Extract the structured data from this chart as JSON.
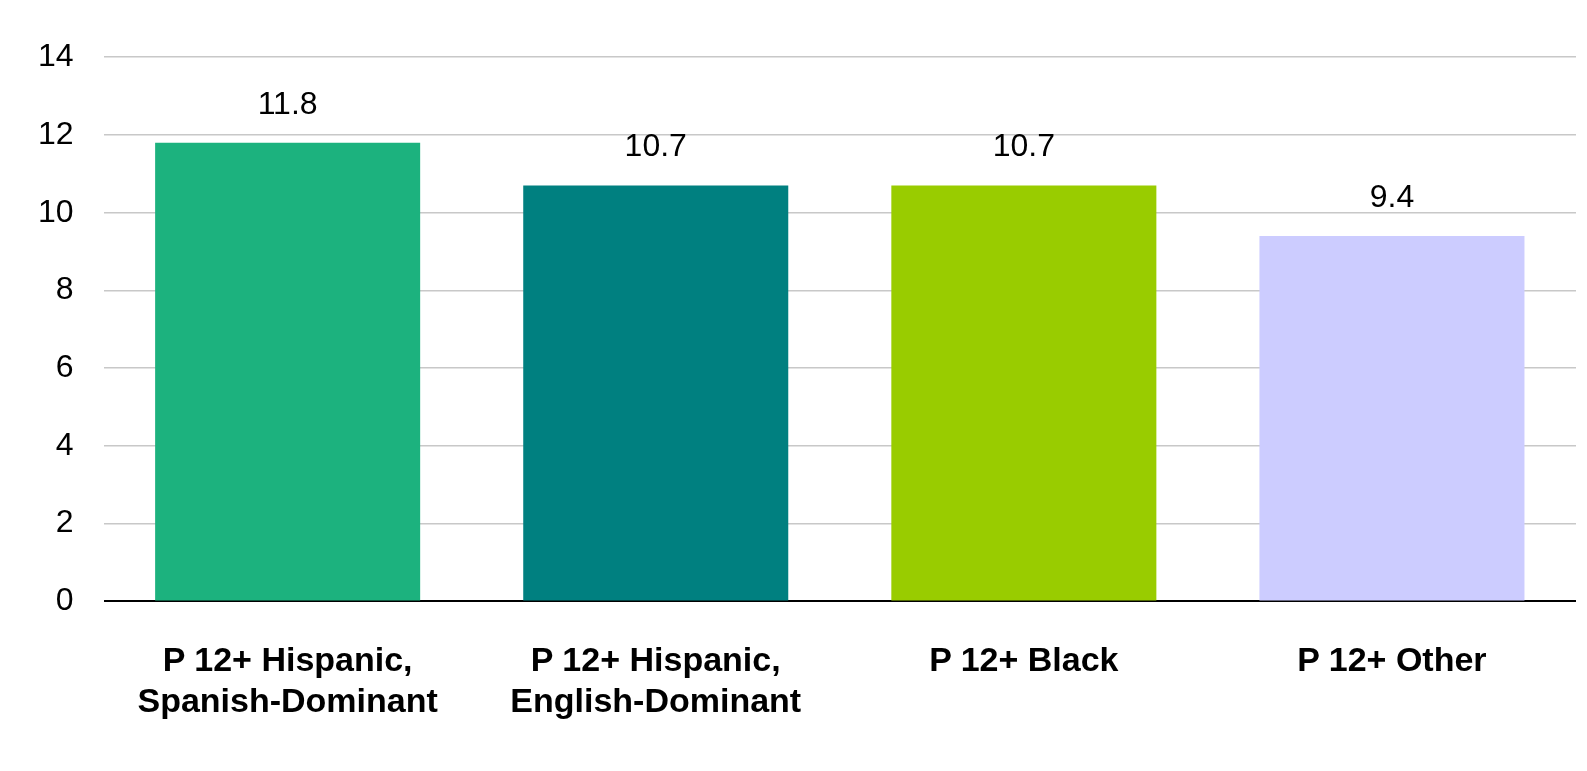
{
  "chart_data": {
    "type": "bar",
    "categories": [
      "P 12+ Hispanic, Spanish-Dominant",
      "P 12+ Hispanic, English-Dominant",
      "P 12+ Black",
      "P 12+ Other"
    ],
    "values": [
      11.8,
      10.7,
      10.7,
      9.4
    ],
    "colors": [
      "#1cb27e",
      "#008080",
      "#99cc00",
      "#ccccff"
    ],
    "ylim": [
      0,
      14
    ],
    "yticks": [
      0,
      2,
      4,
      6,
      8,
      10,
      12,
      14
    ],
    "grid": "y",
    "data_labels": true,
    "legend": false
  }
}
